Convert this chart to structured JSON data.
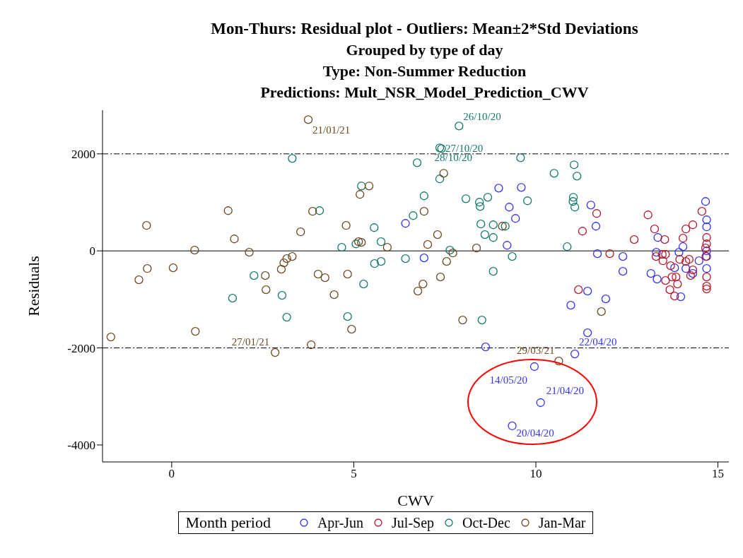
{
  "chart_data": {
    "type": "scatter",
    "title": "Mon-Thurs: Residual plot - Outliers: Mean±2*Std Deviations",
    "subtitle": "Grouped by type of day\nType: Non-Summer Reduction\nPredictions: Mult_NSR_Model_Prediction_CWV",
    "xlabel": "CWV",
    "ylabel": "Residuals",
    "legend_title": "Month period",
    "legend": "bottom",
    "marker": "circle",
    "xlim": [
      -1.9,
      15.3
    ],
    "xticks": [
      0,
      5,
      10,
      15
    ],
    "ylim": [
      -4350,
      2900
    ],
    "yticks": [
      -4000,
      -2000,
      0,
      2000
    ],
    "ref_lines": [
      {
        "axis": "y",
        "value": 2000,
        "line_style": "dashdot"
      },
      {
        "axis": "y",
        "value": 0,
        "line_style": "solid"
      },
      {
        "axis": "y",
        "value": -2000,
        "line_style": "dashdot"
      }
    ],
    "series": [
      {
        "name": "Apr-Jun",
        "color": "#3333ff",
        "x": [
          6.42,
          6.93,
          8.98,
          9.6,
          9.27,
          9.44,
          9.21,
          11.51,
          11.65,
          11.69,
          12.39,
          12.39,
          13.35,
          13.31,
          13.16,
          13.33,
          13.81,
          13.93,
          14.04,
          14.12,
          14.31,
          14.48,
          13.98,
          14.66,
          14.69,
          14.69,
          14.69,
          14.69,
          14.69,
          10.96,
          11.42,
          11.92,
          11.42,
          8.62,
          11.07,
          9.96,
          10.13,
          9.35
        ],
        "values": [
          567,
          -145,
          1294,
          1309,
          902,
          669,
          116,
          945,
          509,
          -58,
          -116,
          -422,
          276,
          -29,
          -465,
          -582,
          -349,
          -29,
          87,
          -364,
          -465,
          -204,
          -945,
          1018,
          640,
          495,
          0,
          -116,
          -364,
          -1120,
          -829,
          -989,
          -1687,
          -1978,
          -2124,
          -2385,
          -3127,
          -3607
        ]
      },
      {
        "name": "Jul-Sep",
        "color": "#b8182e",
        "x": [
          11.67,
          11.28,
          12.03,
          12.7,
          13.08,
          13.26,
          13.54,
          13.3,
          13.47,
          13.56,
          13.49,
          13.7,
          13.74,
          13.85,
          13.89,
          13.56,
          13.68,
          13.81,
          13.95,
          14.12,
          14.21,
          14.31,
          14.25,
          14.04,
          14.12,
          14.31,
          14.56,
          14.69,
          14.69,
          14.66,
          14.67,
          14.69,
          14.69,
          14.69,
          11.17
        ],
        "values": [
          771,
          407,
          -58,
          233,
          742,
          451,
          233,
          -116,
          -73,
          -73,
          -204,
          -305,
          -538,
          -538,
          -684,
          -611,
          -800,
          -931,
          -175,
          -218,
          -175,
          -393,
          -509,
          262,
          451,
          538,
          815,
          276,
          145,
          58,
          -116,
          -538,
          -727,
          -785,
          -800
        ]
      },
      {
        "name": "Oct-Dec",
        "color": "#137a6a",
        "x": [
          1.67,
          2.26,
          3.03,
          3.16,
          3.31,
          4.06,
          4.67,
          4.83,
          5.06,
          5.21,
          5.27,
          5.56,
          5.57,
          5.75,
          5.75,
          6.42,
          6.63,
          6.74,
          6.93,
          7.36,
          7.36,
          7.41,
          7.89,
          7.64,
          8.08,
          8.45,
          8.47,
          8.68,
          8.49,
          8.83,
          8.6,
          8.83,
          9.16,
          9.35,
          8.83,
          8.52,
          9.58,
          9.77,
          10.5,
          10.86,
          11.05,
          11.13,
          11.03,
          11.02,
          11.07
        ],
        "values": [
          -975,
          -509,
          -916,
          -1367,
          1905,
          829,
          73,
          -1353,
          145,
          1338,
          -684,
          480,
          -262,
          189,
          -218,
          -160,
          727,
          1818,
          1135,
          1484,
          2124,
          2109,
          2575,
          15,
          1076,
          1004,
          916,
          1105,
          553,
          538,
          335,
          276,
          509,
          -116,
          -422,
          -1425,
          1920,
          1033,
          1600,
          87,
          1775,
          1542,
          1105,
          1018,
          902
        ]
      },
      {
        "name": "Jan-Mar",
        "color": "#6b4a22",
        "x": [
          -1.67,
          -0.9,
          -0.69,
          -0.67,
          0.04,
          0.63,
          0.65,
          1.55,
          1.72,
          2.13,
          2.57,
          2.59,
          2.84,
          3.01,
          3.08,
          3.16,
          3.31,
          3.54,
          3.75,
          3.83,
          3.87,
          4.02,
          4.21,
          4.46,
          4.79,
          4.83,
          4.94,
          5.13,
          5.17,
          5.21,
          5.42,
          5.92,
          6.76,
          6.9,
          6.93,
          7.03,
          7.3,
          7.38,
          7.47,
          7.55,
          7.72,
          7.99,
          8.37,
          9.08,
          10.63,
          11.8
        ],
        "values": [
          -1775,
          -596,
          524,
          -364,
          -349,
          15,
          -1658,
          829,
          247,
          -29,
          -509,
          -800,
          -2095,
          -378,
          -247,
          -160,
          -116,
          393,
          2705,
          -1935,
          815,
          -480,
          -553,
          -902,
          524,
          -480,
          -1615,
          189,
          1164,
          175,
          1338,
          73,
          -829,
          -684,
          815,
          131,
          335,
          -538,
          1600,
          -218,
          -44,
          -1425,
          58,
          509,
          -2269,
          -1251
        ]
      }
    ],
    "annotations": [
      {
        "text": "21/01/21",
        "x": 3.75,
        "y": 2705
      },
      {
        "text": "26/10/20",
        "x": 7.89,
        "y": 2575
      },
      {
        "text": "27/10/20",
        "x": 7.36,
        "y": 2124
      },
      {
        "text": "28/10/20",
        "x": 7.41,
        "y": 2109
      },
      {
        "text": "27/01/21",
        "x": 2.84,
        "y": -2095
      },
      {
        "text": "29/03/21",
        "x": 10.63,
        "y": -2269
      },
      {
        "text": "22/04/20",
        "x": 11.07,
        "y": -2124
      },
      {
        "text": "14/05/20",
        "x": 9.96,
        "y": -2385
      },
      {
        "text": "21/04/20",
        "x": 10.13,
        "y": -3127
      },
      {
        "text": "20/04/20",
        "x": 9.35,
        "y": -3607
      }
    ]
  }
}
